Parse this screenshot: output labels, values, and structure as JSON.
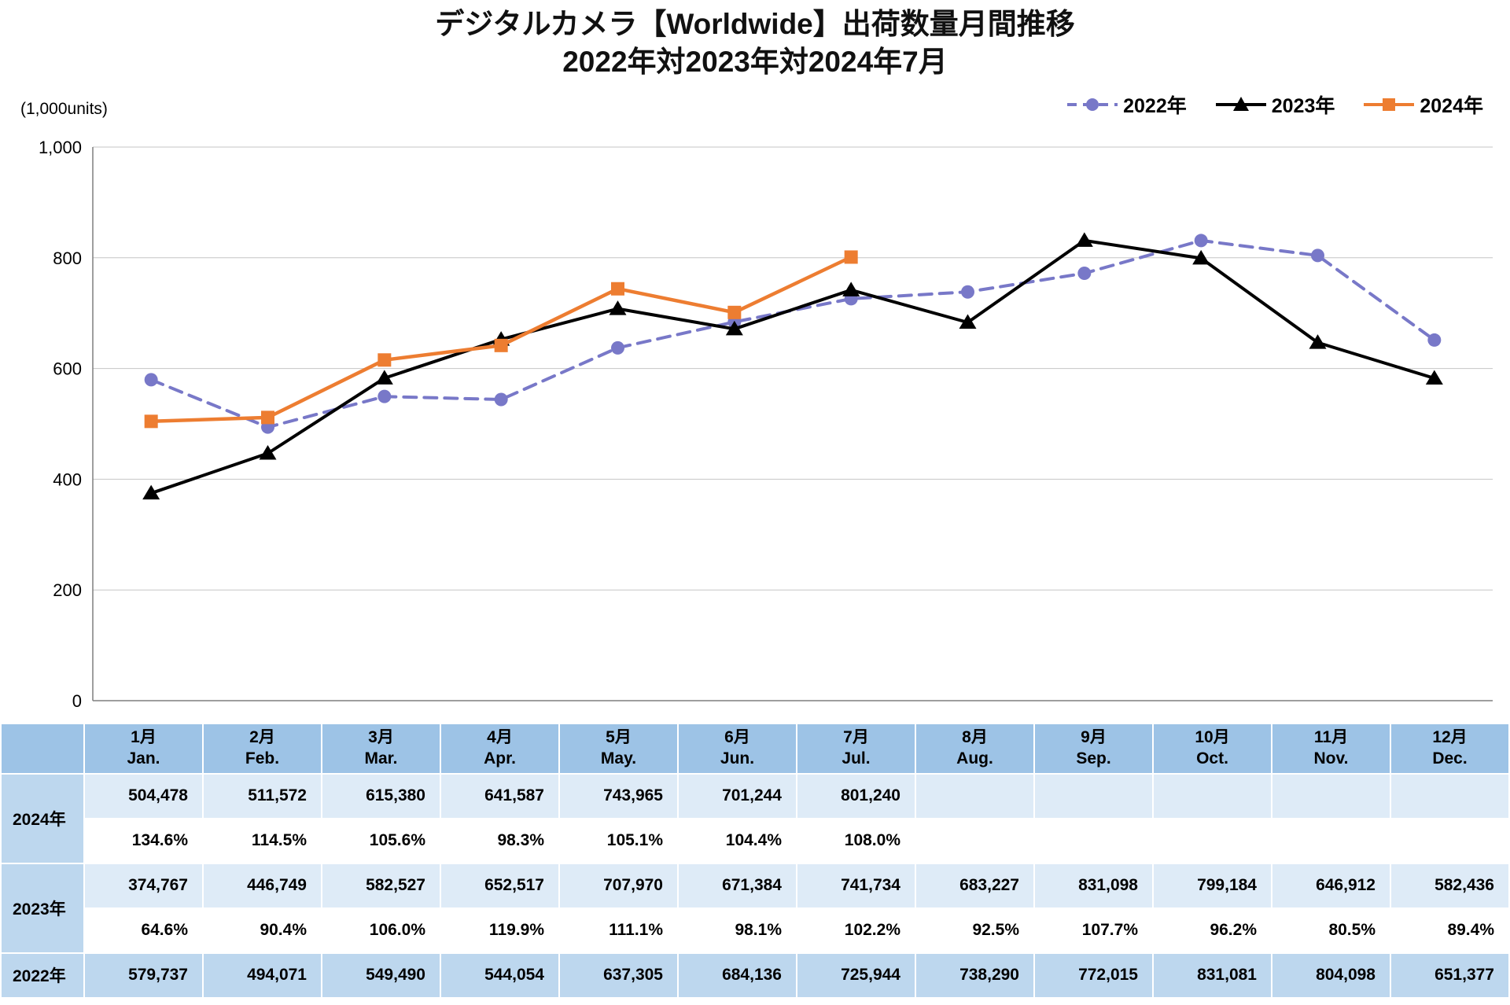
{
  "title": {
    "line1": "デジタルカメラ【Worldwide】出荷数量月間推移",
    "line2": "2022年対2023年対2024年7月"
  },
  "chart_data": {
    "type": "line",
    "title": "デジタルカメラ【Worldwide】出荷数量月間推移 2022年対2023年対2024年7月",
    "ylabel": "(1,000units)",
    "ylim": [
      0,
      1000
    ],
    "y_ticks": [
      0,
      200,
      400,
      600,
      800,
      1000
    ],
    "grid": "horizontal",
    "legend_position": "top-right",
    "categories": [
      "1月",
      "2月",
      "3月",
      "4月",
      "5月",
      "6月",
      "7月",
      "8月",
      "9月",
      "10月",
      "11月",
      "12月"
    ],
    "series": [
      {
        "name": "2022年",
        "color": "#7878C8",
        "marker": "circle",
        "dash": true,
        "width": 4,
        "values": [
          579.737,
          494.071,
          549.49,
          544.054,
          637.305,
          684.136,
          725.944,
          738.29,
          772.015,
          831.081,
          804.098,
          651.377
        ]
      },
      {
        "name": "2023年",
        "color": "#000000",
        "marker": "triangle",
        "dash": false,
        "width": 4,
        "values": [
          374.767,
          446.749,
          582.527,
          652.517,
          707.97,
          671.384,
          741.734,
          683.227,
          831.098,
          799.184,
          646.912,
          582.436
        ]
      },
      {
        "name": "2024年",
        "color": "#ED7D31",
        "marker": "square",
        "dash": false,
        "width": 4.5,
        "values": [
          504.478,
          511.572,
          615.38,
          641.587,
          743.965,
          701.244,
          801.24,
          null,
          null,
          null,
          null,
          null
        ]
      }
    ]
  },
  "table": {
    "months_jp": [
      "1月",
      "2月",
      "3月",
      "4月",
      "5月",
      "6月",
      "7月",
      "8月",
      "9月",
      "10月",
      "11月",
      "12月"
    ],
    "months_en": [
      "Jan.",
      "Feb.",
      "Mar.",
      "Apr.",
      "May.",
      "Jun.",
      "Jul.",
      "Aug.",
      "Sep.",
      "Oct.",
      "Nov.",
      "Dec."
    ],
    "rows": [
      {
        "year": "2024年",
        "values": [
          "504,478",
          "511,572",
          "615,380",
          "641,587",
          "743,965",
          "701,244",
          "801,240",
          "",
          "",
          "",
          "",
          ""
        ],
        "ratios": [
          "134.6%",
          "114.5%",
          "105.6%",
          "98.3%",
          "105.1%",
          "104.4%",
          "108.0%",
          "",
          "",
          "",
          "",
          ""
        ]
      },
      {
        "year": "2023年",
        "values": [
          "374,767",
          "446,749",
          "582,527",
          "652,517",
          "707,970",
          "671,384",
          "741,734",
          "683,227",
          "831,098",
          "799,184",
          "646,912",
          "582,436"
        ],
        "ratios": [
          "64.6%",
          "90.4%",
          "106.0%",
          "119.9%",
          "111.1%",
          "98.1%",
          "102.2%",
          "92.5%",
          "107.7%",
          "96.2%",
          "80.5%",
          "89.4%"
        ]
      },
      {
        "year": "2022年",
        "values": [
          "579,737",
          "494,071",
          "549,490",
          "544,054",
          "637,305",
          "684,136",
          "725,944",
          "738,290",
          "772,015",
          "831,081",
          "804,098",
          "651,377"
        ]
      }
    ]
  }
}
